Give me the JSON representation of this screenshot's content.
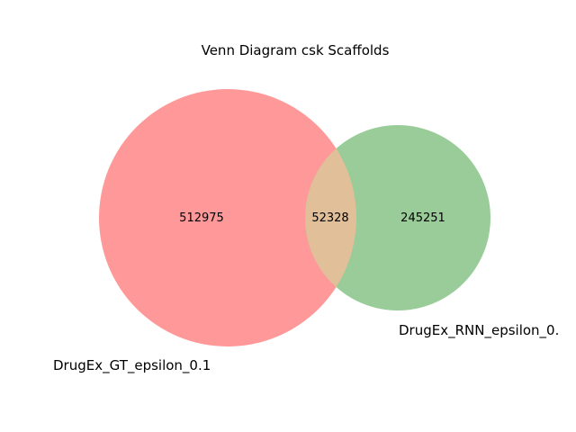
{
  "title": "Venn Diagram csk Scaffolds",
  "sets": [
    {
      "name": "DrugEx_GT_epsilon_0.1",
      "only_count": "512975",
      "color": "#ff9999"
    },
    {
      "name": "DrugEx_RNN_epsilon_0.",
      "only_count": "245251",
      "color": "#99cc99"
    }
  ],
  "intersection": {
    "count": "52328",
    "color": "#e0bf99"
  }
}
